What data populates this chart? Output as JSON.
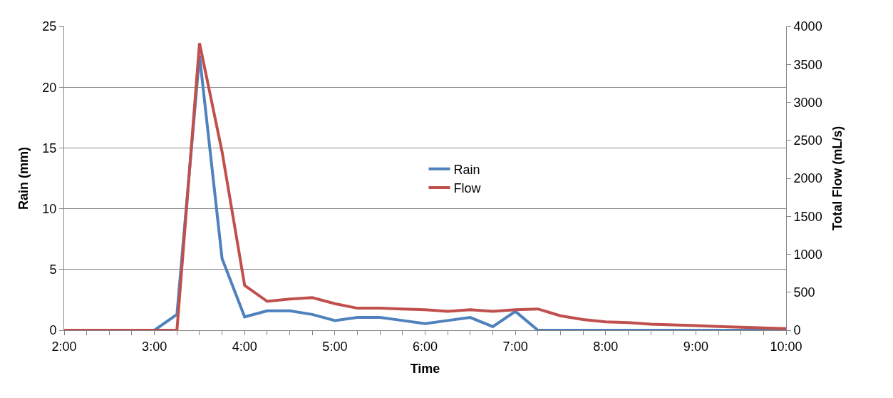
{
  "chart_data": {
    "type": "line",
    "xlabel": "Time",
    "ylabel": "Rain (mm)",
    "y2label": "Total Flow (mL/s)",
    "x": [
      2,
      2.25,
      2.5,
      2.75,
      3,
      3.25,
      3.5,
      3.75,
      4,
      4.25,
      4.5,
      4.75,
      5,
      5.25,
      5.5,
      5.75,
      6,
      6.25,
      6.5,
      6.75,
      7,
      7.25,
      7.5,
      7.75,
      8,
      8.25,
      8.5,
      8.75,
      9,
      9.25,
      9.5,
      9.75,
      10
    ],
    "series": [
      {
        "name": "Rain",
        "color": "#4f81bd",
        "values": [
          null,
          null,
          null,
          null,
          0,
          1.3,
          22.6,
          5.9,
          1.1,
          1.6,
          1.6,
          1.3,
          0.8,
          1.05,
          1.05,
          0.8,
          0.55,
          0.8,
          1.05,
          0.3,
          1.55,
          0,
          0,
          0,
          0,
          0,
          0,
          0,
          0,
          0,
          0,
          0,
          0
        ]
      },
      {
        "name": "Flow",
        "color": "#c0504d",
        "axis": "y2",
        "values": [
          0,
          0,
          0,
          0,
          0,
          0,
          3780,
          2350,
          590,
          380,
          410,
          430,
          350,
          290,
          290,
          280,
          270,
          250,
          270,
          250,
          270,
          280,
          190,
          140,
          110,
          100,
          80,
          70,
          60,
          50,
          40,
          30,
          20
        ]
      }
    ],
    "xlim": [
      2,
      10
    ],
    "xticks": [
      {
        "value": 2,
        "label": "2:00"
      },
      {
        "value": 3,
        "label": "3:00"
      },
      {
        "value": 4,
        "label": "4:00"
      },
      {
        "value": 5,
        "label": "5:00"
      },
      {
        "value": 6,
        "label": "6:00"
      },
      {
        "value": 7,
        "label": "7:00"
      },
      {
        "value": 8,
        "label": "8:00"
      },
      {
        "value": 9,
        "label": "9:00"
      },
      {
        "value": 10,
        "label": "10:00"
      }
    ],
    "ylim": [
      0,
      25
    ],
    "yticks": [
      0,
      5,
      10,
      15,
      20,
      25
    ],
    "y2lim": [
      0,
      4000
    ],
    "y2ticks": [
      0,
      500,
      1000,
      1500,
      2000,
      2500,
      3000,
      3500,
      4000
    ],
    "grid": "y",
    "legend": "center",
    "marker": "none",
    "line_style": "solid"
  }
}
